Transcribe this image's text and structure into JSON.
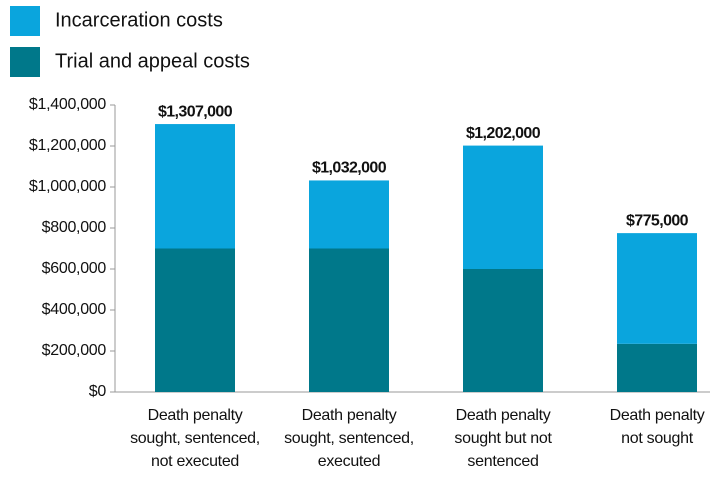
{
  "chart_data": {
    "type": "stacked_bar",
    "categories": [
      [
        "Death penalty",
        "sought, sentenced,",
        "not executed"
      ],
      [
        "Death penalty",
        "sought, sentenced,",
        "executed"
      ],
      [
        "Death penalty",
        "sought but not",
        "sentenced"
      ],
      [
        "Death penalty",
        "not sought"
      ]
    ],
    "series": [
      {
        "name": "Incarceration costs",
        "color": "#0aa5dd",
        "values": [
          607000,
          332000,
          602000,
          540000
        ]
      },
      {
        "name": "Trial and appeal costs",
        "color": "#00788a",
        "values": [
          700000,
          700000,
          600000,
          235000
        ]
      }
    ],
    "total_labels": [
      "$1,307,000",
      "$1,032,000",
      "$1,202,000",
      "$775,000"
    ],
    "ylim": [
      0,
      1400000
    ],
    "yticks": [
      {
        "value": 0,
        "label": "$0"
      },
      {
        "value": 200000,
        "label": "$200,000"
      },
      {
        "value": 400000,
        "label": "$400,000"
      },
      {
        "value": 600000,
        "label": "$600,000"
      },
      {
        "value": 800000,
        "label": "$800,000"
      },
      {
        "value": 1000000,
        "label": "$1,000,000"
      },
      {
        "value": 1200000,
        "label": "$1,200,000"
      },
      {
        "value": 1400000,
        "label": "$1,400,000"
      }
    ],
    "legend": "top-left",
    "grid": false
  }
}
